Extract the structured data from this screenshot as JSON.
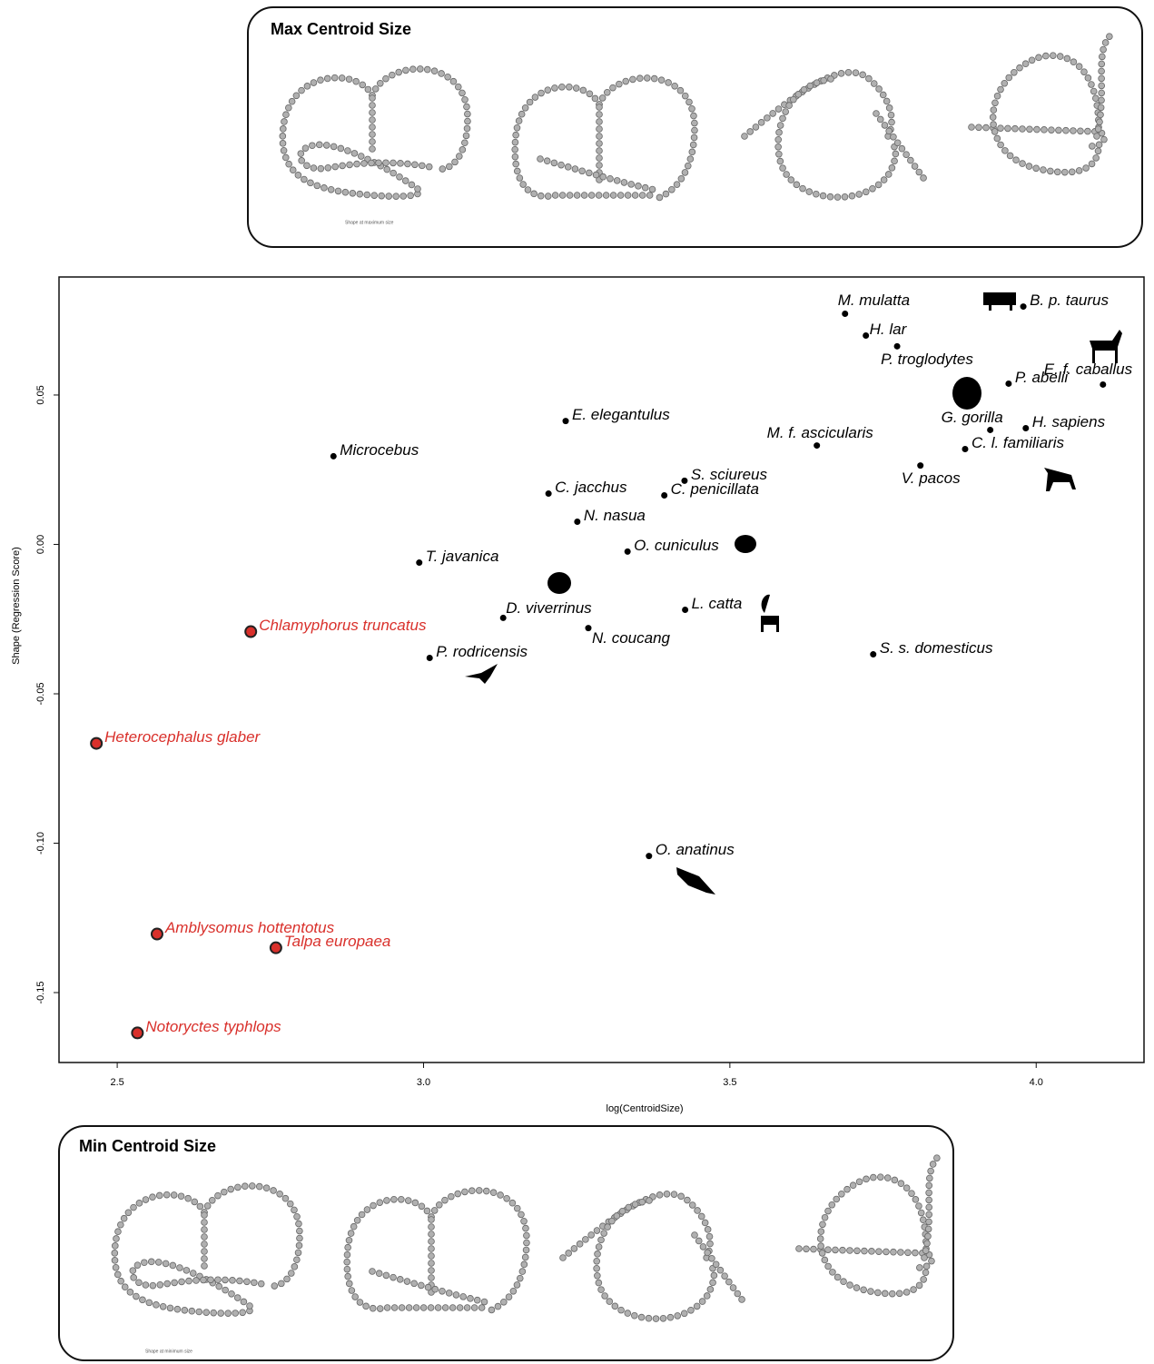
{
  "chart_data": {
    "type": "scatter",
    "xlabel": "log(CentroidSize)",
    "ylabel": "Shape (Regression Score)",
    "xlim": [
      2.405,
      4.176
    ],
    "ylim": [
      -0.1734,
      0.0895
    ],
    "xticks": [
      2.5,
      {
        "value": 3,
        "label": "3.0"
      },
      3.5,
      {
        "value": 4,
        "label": "4.0"
      }
    ],
    "yticks": [
      0.05,
      {
        "value": 0,
        "label": "0.00"
      },
      -0.05,
      {
        "value": -0.1,
        "label": "-0.10"
      },
      -0.15
    ],
    "series": [
      {
        "color": "#000000",
        "labels": [
          "M. mulatta",
          "B. p. taurus",
          "H. lar",
          "P. troglodytes",
          "E. f. caballus",
          "P. abelii",
          "G. gorilla",
          "H. sapiens",
          "E. elegantulus",
          "M. f. ascicularis",
          "Microcebus",
          "C. l. familiaris",
          "V. pacos",
          "S. sciureus",
          "C. jacchus",
          "C. penicillata",
          "N. nasua",
          "O. cuniculus",
          "T. javanica",
          "L. catta",
          "D. viverrinus",
          "N. coucang",
          "S. s. domesticus",
          "P. rodricensis",
          "O. anatinus"
        ],
        "x": [
          3.688,
          3.979,
          3.722,
          3.773,
          4.109,
          3.955,
          3.925,
          3.983,
          3.232,
          3.642,
          2.853,
          3.884,
          3.811,
          3.426,
          3.204,
          3.393,
          3.251,
          3.333,
          2.993,
          3.427,
          3.13,
          3.269,
          3.734,
          3.01,
          3.368
        ],
        "y": [
          0.0772,
          0.0796,
          0.0699,
          0.0663,
          0.0535,
          0.0538,
          0.0383,
          0.0389,
          0.0413,
          0.0331,
          0.0295,
          0.0319,
          0.0264,
          0.0213,
          0.017,
          0.0164,
          0.0076,
          -0.0024,
          -0.0061,
          -0.0219,
          -0.0246,
          -0.028,
          -0.0368,
          -0.038,
          -0.1043
        ]
      },
      {
        "color": "#d9302b",
        "labels": [
          "Chlamyphorus truncatus",
          "Heterocephalus glaber",
          "Amblysomus hottentotus",
          "Talpa europaea",
          "Notoryctes typhlops"
        ],
        "x": [
          2.718,
          2.466,
          2.565,
          2.759,
          2.533
        ],
        "y": [
          -0.0292,
          -0.0666,
          -0.1304,
          -0.135,
          -0.1635
        ]
      }
    ]
  },
  "panels": [
    {
      "title": "Max Centroid Size",
      "caption": "Shape at maximum size"
    },
    {
      "title": "Min Centroid Size",
      "caption": "Shape at minimum size"
    }
  ]
}
